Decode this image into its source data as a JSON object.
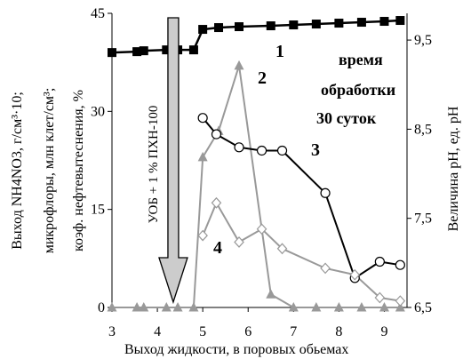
{
  "chart_data": {
    "type": "line",
    "title": "",
    "xlabel": "Выход жидкости, в поровых обьемах",
    "ylabel_left": [
      "Выход NH4NO3, г/см³·10;",
      "микрофлоры, млн клет/см³;",
      "коэф. нефтевытеснения, %"
    ],
    "ylabel_right": "Величина pH, ед. pH",
    "xlim": [
      3,
      9.5
    ],
    "ylim_left": [
      0,
      45
    ],
    "ylim_right": [
      6.5,
      9.8
    ],
    "xticks": [
      "3",
      "4",
      "5",
      "6",
      "7",
      "8",
      "9"
    ],
    "yticks_left": [
      "0",
      "15",
      "30",
      "45"
    ],
    "yticks_right": [
      "6,5",
      "7,5",
      "8,5",
      "9,5"
    ],
    "annotation_time": [
      "время",
      "обработки",
      "30 суток"
    ],
    "injection_label": "УОБ + 1 % ПХН-100",
    "injection_x": 4.35,
    "series": [
      {
        "name": "1",
        "axis": "right",
        "color": "#000000",
        "marker": "square",
        "x": [
          3.0,
          3.55,
          3.7,
          4.2,
          4.45,
          4.8,
          5.0,
          5.35,
          5.8,
          6.5,
          7.0,
          7.5,
          8.0,
          8.5,
          9.0,
          9.35
        ],
        "y": [
          9.36,
          9.37,
          9.38,
          9.39,
          9.39,
          9.39,
          9.62,
          9.64,
          9.65,
          9.66,
          9.67,
          9.68,
          9.69,
          9.7,
          9.71,
          9.72
        ]
      },
      {
        "name": "2",
        "axis": "left",
        "color": "#999999",
        "marker": "triangle",
        "x": [
          3.0,
          3.55,
          3.7,
          4.2,
          4.45,
          4.8,
          5.0,
          5.35,
          5.8,
          6.5,
          7.0,
          7.5,
          8.0,
          8.5,
          9.0,
          9.35
        ],
        "y": [
          0,
          0,
          0,
          0,
          0,
          0,
          23,
          27,
          37,
          2,
          0,
          0,
          0,
          0,
          0,
          0
        ]
      },
      {
        "name": "3",
        "axis": "left",
        "color": "#000000",
        "marker": "circle",
        "x": [
          5.0,
          5.3,
          5.8,
          6.3,
          6.75,
          7.7,
          8.35,
          8.9,
          9.35
        ],
        "y": [
          29,
          26.5,
          24.5,
          24,
          24,
          17.5,
          4.5,
          7,
          6.5
        ]
      },
      {
        "name": "4",
        "axis": "left",
        "color": "#999999",
        "marker": "diamond",
        "x": [
          5.0,
          5.3,
          5.8,
          6.3,
          6.75,
          7.7,
          8.35,
          8.9,
          9.35
        ],
        "y": [
          11,
          16,
          10,
          12,
          9,
          6,
          5,
          1.5,
          1
        ]
      }
    ]
  }
}
